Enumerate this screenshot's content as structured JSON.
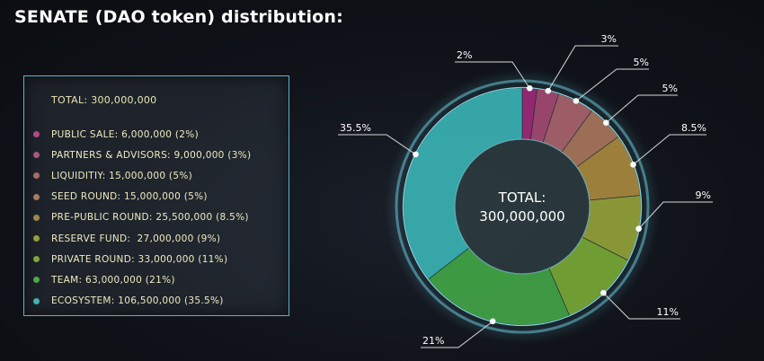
{
  "title": "SENATE (DAO token) distribution:",
  "legend_total": "TOTAL: 300,000,000",
  "center": {
    "line1": "TOTAL:",
    "line2": "300,000,000"
  },
  "legend": [
    {
      "label": "PUBLIC SALE: 6,000,000 (2%)",
      "color": "#b04a86"
    },
    {
      "label": "PARTNERS & ADVISORS: 9,000,000 (3%)",
      "color": "#a8567a"
    },
    {
      "label": "LIQUIDITIY: 15,000,000 (5%)",
      "color": "#a86c6c"
    },
    {
      "label": "SEED ROUND: 15,000,000 (5%)",
      "color": "#a87a5e"
    },
    {
      "label": "PRE-PUBLIC ROUND: 25,500,000 (8.5%)",
      "color": "#a0874a"
    },
    {
      "label": "RESERVE FUND:  27,000,000 (9%)",
      "color": "#93a03c"
    },
    {
      "label": "PRIVATE ROUND: 33,000,000 (11%)",
      "color": "#7da838"
    },
    {
      "label": "TEAM: 63,000,000 (21%)",
      "color": "#4fa849"
    },
    {
      "label": "ECOSYSTEM: 106,500,000 (35.5%)",
      "color": "#3fb3b3"
    }
  ],
  "chart_data": {
    "type": "pie",
    "title": "SENATE (DAO token) distribution:",
    "total": 300000000,
    "categories": [
      "PUBLIC SALE",
      "PARTNERS & ADVISORS",
      "LIQUIDITIY",
      "SEED ROUND",
      "PRE-PUBLIC ROUND",
      "RESERVE FUND",
      "PRIVATE ROUND",
      "TEAM",
      "ECOSYSTEM"
    ],
    "values": [
      6000000,
      9000000,
      15000000,
      15000000,
      25500000,
      27000000,
      33000000,
      63000000,
      106500000
    ],
    "percent_labels": [
      "2%",
      "3%",
      "5%",
      "5%",
      "8.5%",
      "9%",
      "11%",
      "21%",
      "35.5%"
    ],
    "colors": [
      "#9c2a78",
      "#a44a72",
      "#a8646c",
      "#a8765c",
      "#a8893e",
      "#94a23a",
      "#78a836",
      "#42a446",
      "#3ab2b4"
    ],
    "donut": true,
    "legend_position": "left"
  }
}
